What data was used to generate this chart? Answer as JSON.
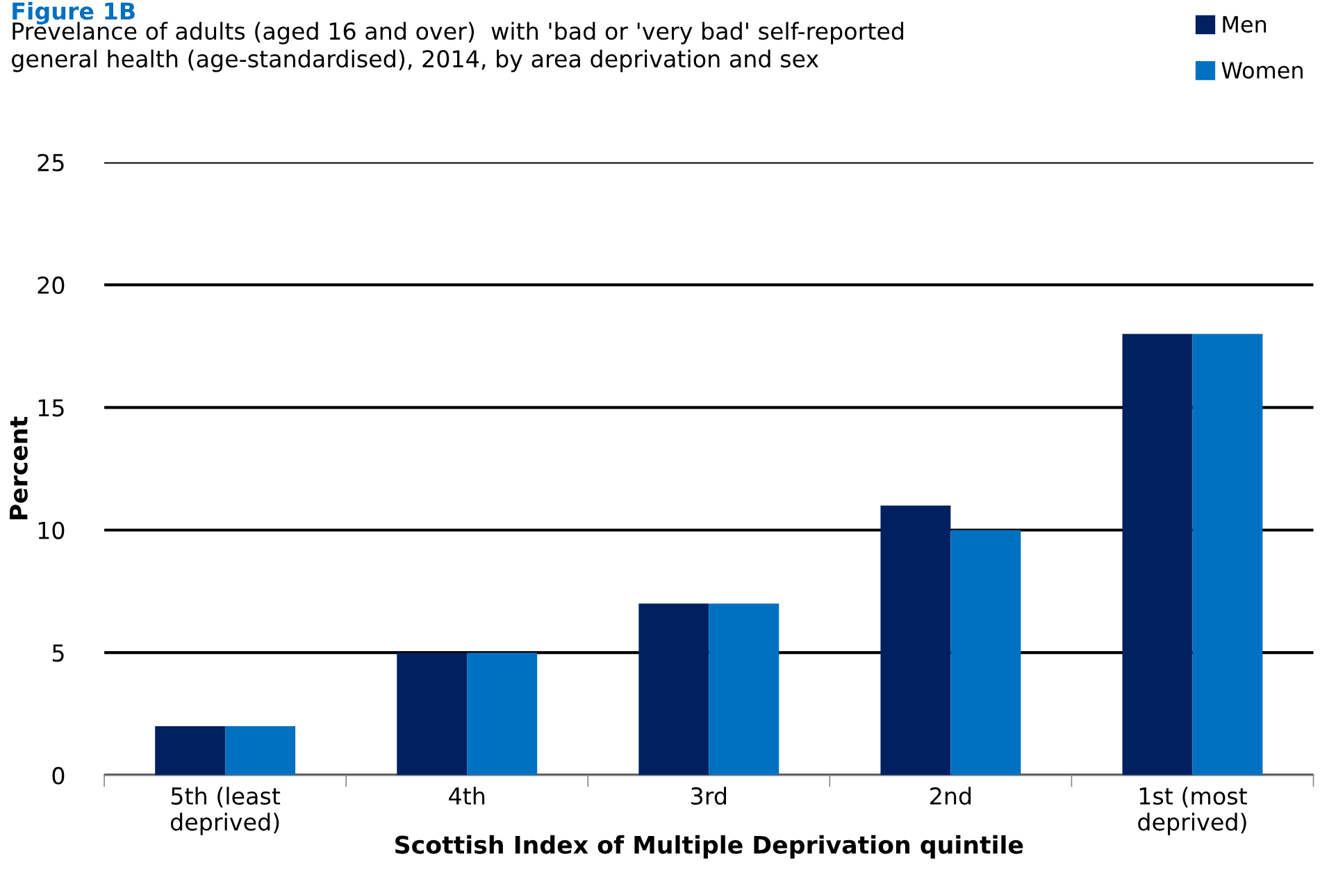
{
  "chart_data": {
    "type": "bar",
    "title": "Figure 1B",
    "subtitle": "Prevelance of adults (aged 16 and over)  with 'bad or 'very bad' self-reported\ngeneral health (age-standardised), 2014, by area deprivation and sex",
    "xlabel": "Scottish Index of Multiple Deprivation quintile",
    "ylabel": "Percent",
    "categories": [
      "5th (least\ndeprived)",
      "4th",
      "3rd",
      "2nd",
      "1st (most\ndeprived)"
    ],
    "series": [
      {
        "name": "Men",
        "color": "#002060",
        "values": [
          2,
          5,
          7,
          11,
          18
        ]
      },
      {
        "name": "Women",
        "color": "#0070c0",
        "values": [
          2,
          5,
          7,
          10,
          18
        ]
      }
    ],
    "ylim": [
      0,
      25
    ],
    "yticks": [
      0,
      5,
      10,
      15,
      20,
      25
    ],
    "grid": "y",
    "legend": "top right"
  }
}
